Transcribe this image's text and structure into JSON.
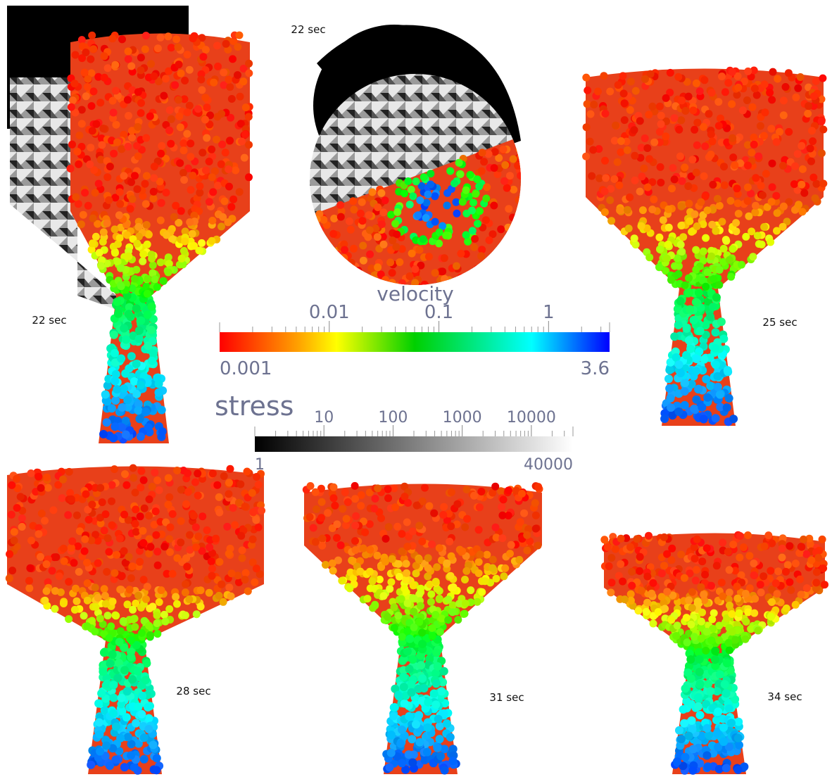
{
  "panels": [
    {
      "label": "22 sec"
    },
    {
      "label": "22 sec"
    },
    {
      "label": "25 sec"
    },
    {
      "label": "28 sec"
    },
    {
      "label": "31 sec"
    },
    {
      "label": "34 sec"
    }
  ],
  "colorbars": {
    "velocity": {
      "title": "velocity",
      "min": 0.001,
      "max": 3.6,
      "ticks": [
        0.01,
        0.1,
        1
      ]
    },
    "stress": {
      "title": "stress",
      "min": 1,
      "max": 40000,
      "ticks": [
        10,
        100,
        1000,
        10000
      ]
    }
  }
}
